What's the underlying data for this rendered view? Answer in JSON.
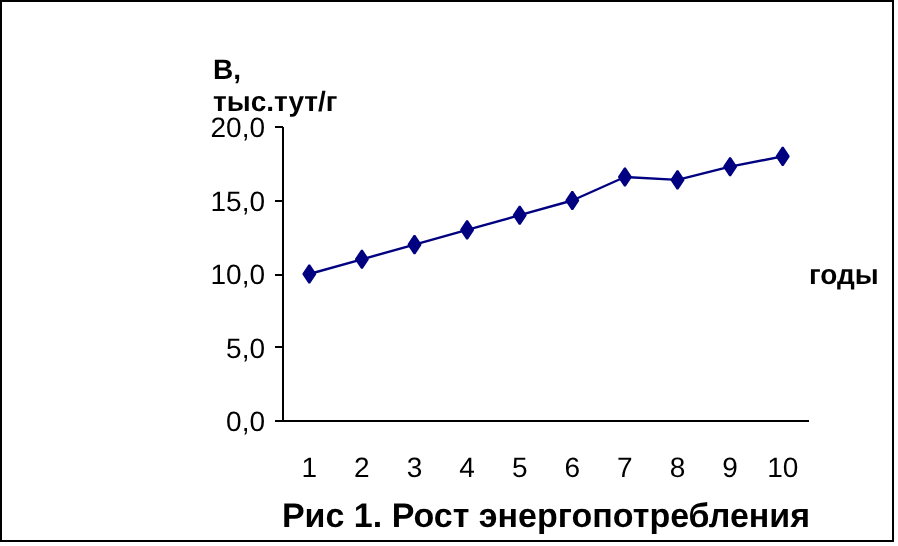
{
  "chart_data": {
    "type": "line",
    "title": "Рис 1. Рост энергопотребления",
    "ylabel": "В,\nтыс.тут/г",
    "xlabel": "годы",
    "categories": [
      "1",
      "2",
      "3",
      "4",
      "5",
      "6",
      "7",
      "8",
      "9",
      "10"
    ],
    "series": [
      {
        "color": "#000080",
        "values": [
          10,
          11,
          12,
          13,
          14,
          15,
          16.6,
          16.4,
          17.3,
          18
        ]
      }
    ],
    "ylim": [
      0,
      20
    ],
    "yticks": [
      {
        "value": 0,
        "label": "0,0"
      },
      {
        "value": 5,
        "label": "5,0"
      },
      {
        "value": 10,
        "label": "10,0"
      },
      {
        "value": 15,
        "label": "15,0"
      },
      {
        "value": 20,
        "label": "20,0"
      }
    ],
    "grid": false,
    "marker": "diamond",
    "line_style": "solid"
  }
}
